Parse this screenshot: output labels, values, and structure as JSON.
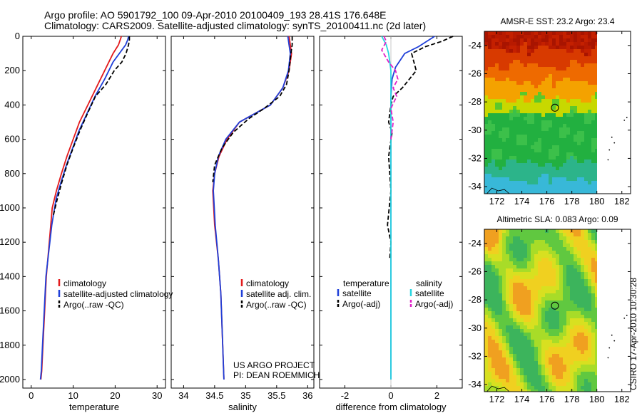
{
  "header": {
    "line1": "Argo profile: AO 5901792_100 09-Apr-2010 20100409_193 28.41S 176.648E",
    "line2": "Climatology: CARS2009. Satellite-adjusted climatology: synTS_20100411.nc (2d later)"
  },
  "colors": {
    "climatology": "#e31a1c",
    "satellite": "#1f3fd8",
    "argo": "#000000",
    "salinity_satellite": "#29d6e0",
    "salinity_argo": "#e020c8"
  },
  "chart_data": [
    {
      "type": "line",
      "id": "temperature",
      "xlabel": "temperature",
      "ylabel": "",
      "xlim": [
        -2,
        32
      ],
      "ylim": [
        0,
        2050
      ],
      "y_reversed": true,
      "xticks": [
        0,
        10,
        20,
        30
      ],
      "xtick_labels": [
        "0",
        "10",
        "20",
        "30"
      ],
      "yticks": [
        0,
        200,
        400,
        600,
        800,
        1000,
        1200,
        1400,
        1600,
        1800,
        2000
      ],
      "ytick_labels": [
        "0",
        "200",
        "400",
        "600",
        "800",
        "1000",
        "1200",
        "1400",
        "1600",
        "1800",
        "2000"
      ],
      "legend": [
        "climatology",
        "satellite-adjusted climatology",
        "Argo(..raw -QC)"
      ],
      "series": [
        {
          "name": "climatology",
          "style": "solid",
          "color": "#e31a1c",
          "x": [
            21.5,
            20.8,
            19.5,
            17.5,
            15.5,
            13.5,
            11.5,
            10.0,
            8.5,
            7.2,
            6.0,
            5.0,
            4.3,
            3.6,
            3.2,
            2.8,
            2.5,
            2.3
          ],
          "y": [
            0,
            50,
            100,
            200,
            300,
            400,
            500,
            600,
            700,
            800,
            900,
            1000,
            1200,
            1400,
            1600,
            1800,
            1950,
            2000
          ]
        },
        {
          "name": "satellite-adjusted climatology",
          "style": "solid",
          "color": "#1f3fd8",
          "x": [
            23.2,
            23.0,
            22.5,
            21.0,
            19.5,
            17.5,
            15.2,
            13.3,
            11.4,
            9.9,
            8.4,
            7.1,
            5.9,
            4.9,
            4.2,
            3.5,
            3.1,
            2.7,
            2.4,
            2.2
          ],
          "y": [
            0,
            20,
            50,
            100,
            150,
            250,
            350,
            450,
            550,
            650,
            750,
            850,
            950,
            1100,
            1250,
            1400,
            1600,
            1800,
            1950,
            2000
          ]
        },
        {
          "name": "Argo(..raw -QC)",
          "style": "dashed",
          "color": "#000000",
          "x": [
            23.4,
            23.4,
            23.2,
            22.6,
            21.6,
            19.8,
            17.8,
            15.3,
            13.4,
            11.6,
            10.0,
            8.5,
            7.3,
            6.2,
            5.2
          ],
          "y": [
            0,
            20,
            50,
            100,
            150,
            200,
            280,
            350,
            450,
            550,
            650,
            750,
            850,
            950,
            1050
          ]
        }
      ]
    },
    {
      "type": "line",
      "id": "salinity",
      "xlabel": "salinity",
      "xlim": [
        33.8,
        36.1
      ],
      "ylim": [
        0,
        2050
      ],
      "y_reversed": true,
      "xticks": [
        34,
        34.5,
        35,
        35.5,
        36
      ],
      "xtick_labels": [
        "34",
        "34.5",
        "35",
        "35.5",
        "36"
      ],
      "legend": [
        "climatology",
        "satellite adj. clim.",
        "Argo(..raw -QC)"
      ],
      "annotation": [
        "US ARGO PROJECT",
        "PI: DEAN ROEMMICH"
      ],
      "series": [
        {
          "name": "climatology",
          "style": "solid",
          "color": "#e31a1c",
          "x": [
            35.7,
            35.72,
            35.74,
            35.7,
            35.6,
            35.4,
            35.15,
            34.9,
            34.7,
            34.57,
            34.5,
            34.47,
            34.5,
            34.56,
            34.6,
            34.63,
            34.65
          ],
          "y": [
            0,
            50,
            100,
            200,
            300,
            400,
            450,
            500,
            600,
            700,
            800,
            900,
            1100,
            1300,
            1500,
            1800,
            2000
          ]
        },
        {
          "name": "satellite adj. clim.",
          "style": "solid",
          "color": "#1f3fd8",
          "x": [
            35.68,
            35.7,
            35.72,
            35.69,
            35.6,
            35.4,
            35.15,
            34.9,
            34.68,
            34.56,
            34.5,
            34.48,
            34.51,
            34.56,
            34.6,
            34.63,
            34.65
          ],
          "y": [
            0,
            50,
            100,
            200,
            300,
            400,
            450,
            500,
            600,
            700,
            800,
            900,
            1100,
            1300,
            1500,
            1800,
            2000
          ]
        },
        {
          "name": "Argo(..raw -QC)",
          "style": "dashed",
          "color": "#000000",
          "x": [
            35.75,
            35.75,
            35.73,
            35.7,
            35.66,
            35.55,
            35.3,
            35.05,
            34.8,
            34.62,
            34.5,
            34.47
          ],
          "y": [
            0,
            50,
            100,
            200,
            280,
            350,
            420,
            480,
            560,
            650,
            750,
            850
          ]
        }
      ]
    },
    {
      "type": "line",
      "id": "difference",
      "xlabel": "difference from climatology",
      "xlim": [
        -3.1,
        3.1
      ],
      "ylim": [
        0,
        2050
      ],
      "y_reversed": true,
      "xticks": [
        -2,
        0,
        2
      ],
      "xtick_labels": [
        "-2",
        "0",
        "2"
      ],
      "legend_headers": [
        "temperature",
        "salinity"
      ],
      "legend": [
        "satellite",
        "Argo(-adj)",
        "satellite",
        "Argo(-adj)"
      ],
      "series": [
        {
          "name": "temperature satellite",
          "style": "solid",
          "color": "#1f3fd8",
          "x": [
            1.9,
            1.2,
            0.6,
            0.2,
            0.05,
            0.0,
            0.0,
            0.0,
            0.0,
            0.0
          ],
          "y": [
            0,
            60,
            100,
            180,
            250,
            350,
            500,
            800,
            1500,
            2000
          ]
        },
        {
          "name": "temperature Argo(-adj)",
          "style": "dashed",
          "color": "#000000",
          "x": [
            2.7,
            2.2,
            1.5,
            0.9,
            1.1,
            0.5,
            0.1,
            0.0,
            -0.1,
            0.05,
            -0.1,
            0.0,
            -0.15,
            0.0,
            -0.05
          ],
          "y": [
            0,
            30,
            60,
            100,
            200,
            300,
            350,
            400,
            500,
            560,
            700,
            900,
            1100,
            1200,
            1300
          ]
        },
        {
          "name": "salinity satellite",
          "style": "solid",
          "color": "#29d6e0",
          "x": [
            -0.4,
            -0.2,
            -0.1,
            0.0,
            0.0,
            0.0,
            0.0
          ],
          "y": [
            0,
            50,
            100,
            200,
            400,
            1000,
            2000
          ]
        },
        {
          "name": "salinity Argo(-adj)",
          "style": "dashed",
          "color": "#e020c8",
          "x": [
            -0.3,
            -0.2,
            -0.4,
            -0.1,
            0.2,
            0.3,
            0.1,
            0.25,
            0.0,
            0.1,
            0.0
          ],
          "y": [
            0,
            30,
            80,
            150,
            200,
            250,
            300,
            350,
            420,
            500,
            600
          ]
        }
      ]
    },
    {
      "type": "heatmap",
      "id": "sst_map",
      "title": "AMSR-E SST: 23.2 Argo: 23.4",
      "xlim": [
        171,
        182.7
      ],
      "ylim": [
        -34.5,
        -23
      ],
      "xticks": [
        172,
        174,
        176,
        178,
        180,
        182
      ],
      "xtick_labels": [
        "172",
        "174",
        "176",
        "178",
        "180",
        "182"
      ],
      "yticks": [
        -24,
        -26,
        -28,
        -30,
        -32,
        -34
      ],
      "ytick_labels": [
        "-24",
        "-26",
        "-28",
        "-30",
        "-32",
        "-34"
      ],
      "argo_position": [
        176.648,
        -28.41
      ],
      "data_extent_lon": [
        171,
        180
      ]
    },
    {
      "type": "heatmap",
      "id": "sla_map",
      "title": "Altimetric SLA: 0.083 Argo: 0.09",
      "xlim": [
        171,
        182.7
      ],
      "ylim": [
        -34.5,
        -23
      ],
      "xticks": [
        172,
        174,
        176,
        178,
        180,
        182
      ],
      "xtick_labels": [
        "172",
        "174",
        "176",
        "178",
        "180",
        "182"
      ],
      "yticks": [
        -24,
        -26,
        -28,
        -30,
        -32,
        -34
      ],
      "ytick_labels": [
        "-24",
        "-26",
        "-28",
        "-30",
        "-32",
        "-34"
      ],
      "argo_position": [
        176.648,
        -28.41
      ],
      "data_extent_lon": [
        171,
        180
      ]
    }
  ],
  "footer": {
    "stamp": "CSIRO 17-Apr-2010 10:30:28"
  }
}
